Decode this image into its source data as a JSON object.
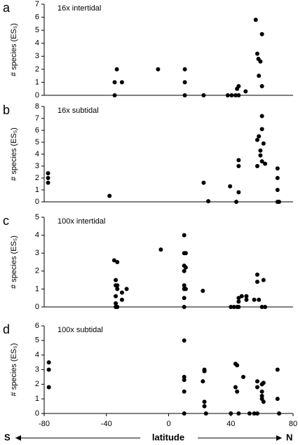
{
  "chart_data": [
    {
      "type": "scatter",
      "panel_label": "a",
      "title": "16x intertidal",
      "y_label": "# species (ES₅)",
      "color": "#000000",
      "xlim": [
        -80,
        80
      ],
      "ylim": [
        0,
        7
      ],
      "yticks": [
        0,
        1,
        2,
        3,
        4,
        5,
        6,
        7
      ],
      "x": [
        -34.7,
        -33.3,
        -34.7,
        -30,
        -6.8,
        10.4,
        10.4,
        10.4,
        22.5,
        38,
        40.5,
        43,
        45,
        44,
        45,
        49.5,
        56,
        57,
        57.7,
        60,
        59,
        58,
        60
      ],
      "values": [
        1.0,
        2.0,
        0,
        1.0,
        2.0,
        2.0,
        1.0,
        0,
        0,
        0,
        0,
        0,
        0,
        0.5,
        0.7,
        0.3,
        5.8,
        3.2,
        2.8,
        4.7,
        2.6,
        1.5,
        0.7
      ]
    },
    {
      "type": "scatter",
      "panel_label": "b",
      "title": "16x subtidal",
      "y_label": "# species (ES₅)",
      "color": "#000000",
      "xlim": [
        -80,
        80
      ],
      "ylim": [
        0,
        8
      ],
      "yticks": [
        0,
        1,
        2,
        3,
        4,
        5,
        6,
        7,
        8
      ],
      "x": [
        -77.5,
        -77.5,
        -77.5,
        -38,
        22.5,
        25.5,
        39.5,
        43.5,
        45,
        45,
        45,
        57,
        57,
        58,
        59,
        59,
        60,
        60,
        60,
        61,
        62,
        70,
        70,
        70,
        70,
        71
      ],
      "values": [
        2.4,
        2.0,
        1.6,
        0.5,
        1.6,
        0.05,
        1.3,
        0,
        0.8,
        3.5,
        3.0,
        5.2,
        3.0,
        5.5,
        4.3,
        3.9,
        7.2,
        6.1,
        3.4,
        4.9,
        3.2,
        2.8,
        2.0,
        1.0,
        0,
        0
      ]
    },
    {
      "type": "scatter",
      "panel_label": "c",
      "title": "100x intertidal",
      "y_label": "# species (ES₅)",
      "color": "#000000",
      "xlim": [
        -80,
        80
      ],
      "ylim": [
        0,
        5
      ],
      "yticks": [
        0,
        1,
        2,
        3,
        4,
        5
      ],
      "x": [
        -35,
        -33,
        -34,
        -34,
        -33,
        -33,
        -34,
        -34,
        -33,
        -34,
        -30,
        -30,
        -27,
        -5,
        10,
        10,
        10,
        10,
        10,
        10,
        10,
        10,
        11,
        11,
        11,
        22,
        40,
        42,
        44,
        45,
        45,
        47,
        50,
        50,
        55,
        57,
        57,
        58,
        60,
        61,
        62,
        45
      ],
      "values": [
        2.6,
        2.5,
        1.5,
        1.2,
        1.2,
        1.0,
        0.6,
        0.2,
        0,
        0,
        0.8,
        0.4,
        1.0,
        3.2,
        4.0,
        3.0,
        2.3,
        2.0,
        1.2,
        1.0,
        0.5,
        0,
        3.0,
        2.2,
        1.0,
        0.9,
        0,
        0,
        0,
        0.5,
        0.3,
        0.6,
        0.4,
        0.6,
        0.4,
        1.8,
        1.4,
        0.4,
        0,
        1.5,
        0,
        0
      ]
    },
    {
      "type": "scatter",
      "panel_label": "d",
      "title": "100x subtidal",
      "y_label": "# species (ES₅)",
      "color": "#000000",
      "xlim": [
        -80,
        80
      ],
      "ylim": [
        0,
        6
      ],
      "yticks": [
        0,
        1,
        2,
        3,
        4,
        5,
        6
      ],
      "xticks": [
        -80,
        -40,
        0,
        40,
        80
      ],
      "x_label": "latitude",
      "x_start_label": "S",
      "x_end_label": "N",
      "x": [
        -77,
        -77,
        -77,
        10,
        10,
        10,
        10,
        10,
        22,
        23,
        23,
        23,
        23,
        24,
        40,
        43,
        44,
        43,
        44,
        45,
        48,
        52,
        55,
        57,
        57,
        57,
        60,
        60,
        60,
        60,
        61,
        61,
        70,
        70,
        71
      ],
      "values": [
        3.5,
        3.0,
        1.8,
        5.0,
        2.5,
        2.3,
        1.5,
        0,
        2.2,
        3.0,
        2.9,
        0.8,
        0.5,
        0,
        0,
        3.4,
        3.3,
        1.8,
        1.5,
        0,
        2.5,
        0,
        0,
        2.2,
        1.8,
        0,
        2.0,
        1.5,
        1.2,
        1.0,
        2.1,
        0.8,
        3.0,
        1.0,
        0
      ]
    }
  ]
}
